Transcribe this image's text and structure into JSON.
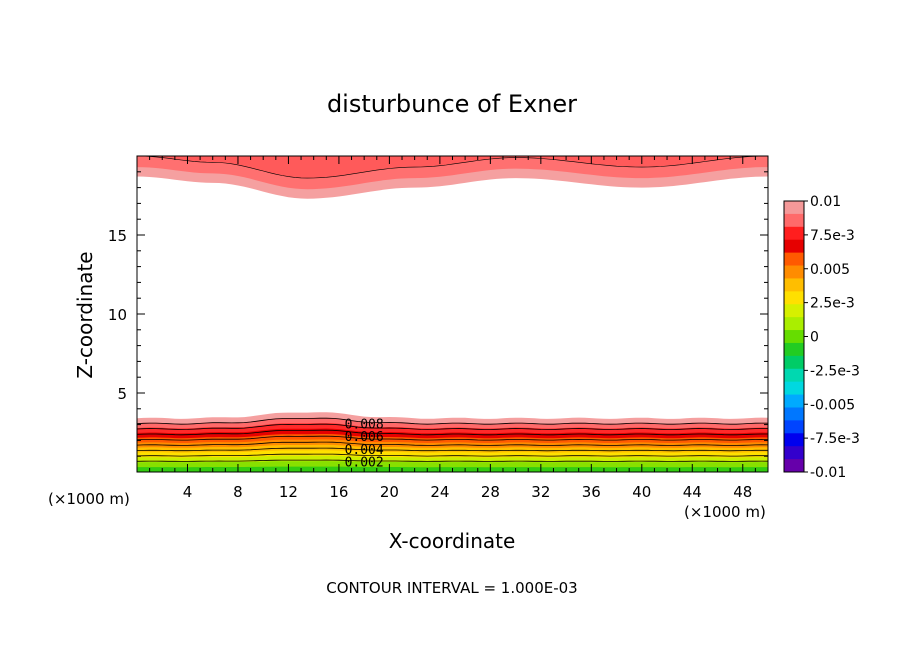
{
  "chart_data": {
    "type": "contour",
    "title": "disturbunce of Exner",
    "xlabel": "X-coordinate",
    "ylabel": "Z-coordinate",
    "x_unit_left": "(×1000 m)",
    "x_unit_right": "(×1000 m)",
    "xlim": [
      0,
      50
    ],
    "ylim": [
      0,
      20
    ],
    "x_ticks": [
      4,
      8,
      12,
      16,
      20,
      24,
      28,
      32,
      36,
      40,
      44,
      48
    ],
    "y_ticks": [
      5,
      10,
      15
    ],
    "contour_interval_text": "CONTOUR INTERVAL = 1.000E-03",
    "contour_labels": [
      {
        "text": "0.008",
        "x": 18,
        "z": 3.0
      },
      {
        "text": "0.006",
        "x": 18,
        "z": 2.2
      },
      {
        "text": "0.004",
        "x": 18,
        "z": 1.4
      },
      {
        "text": "0.002",
        "x": 18,
        "z": 0.6
      }
    ],
    "bottom_layer": {
      "description_levels": [
        0.002,
        0.004,
        0.006,
        0.008,
        0.01
      ],
      "top_z_base": 3.4,
      "hill_center_x": 13.5,
      "hill_height_z": 0.4
    },
    "top_layer": {
      "boundary_z": [
        {
          "x": 0,
          "z": 18.7
        },
        {
          "x": 6,
          "z": 18.3
        },
        {
          "x": 13.5,
          "z": 17.3
        },
        {
          "x": 22,
          "z": 18.0
        },
        {
          "x": 30,
          "z": 18.6
        },
        {
          "x": 40,
          "z": 18.0
        },
        {
          "x": 50,
          "z": 18.7
        }
      ]
    },
    "colorbar": {
      "labels": [
        "0.01",
        "7.5e-3",
        "0.005",
        "2.5e-3",
        "0",
        "-2.5e-3",
        "-0.005",
        "-7.5e-3",
        "-0.01"
      ],
      "colors": [
        "#f59999",
        "#ff6a6a",
        "#ff1e1e",
        "#e60000",
        "#ff5a00",
        "#ff8c00",
        "#ffbe00",
        "#ffe000",
        "#d6f000",
        "#aaee00",
        "#66dd00",
        "#22cc22",
        "#00cc66",
        "#00d8b0",
        "#00d8e0",
        "#00aaff",
        "#0077ff",
        "#0044ff",
        "#0000ee",
        "#3300cc",
        "#6600aa"
      ]
    }
  }
}
